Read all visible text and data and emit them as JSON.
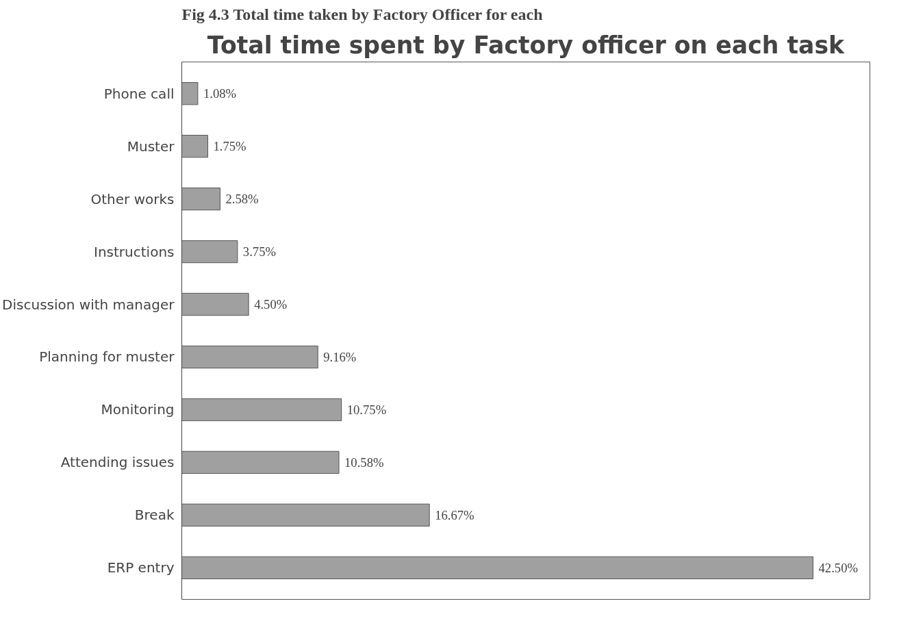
{
  "chart_data": {
    "type": "bar",
    "orientation": "horizontal",
    "title": "Total time spent by Factory officer on each task",
    "annotations": [
      "Fig 4.3 Total time taken by Factory Officer for each"
    ],
    "categories": [
      "Phone call",
      "Muster",
      "Other works",
      "Instructions",
      "Discussion with manager",
      "Planning for muster",
      "Monitoring",
      "Attending issues",
      "Break",
      "ERP entry"
    ],
    "values": [
      1.08,
      1.75,
      2.58,
      3.75,
      4.5,
      9.16,
      10.75,
      10.58,
      16.67,
      42.5
    ],
    "value_labels": [
      "1.08%",
      "1.75%",
      "2.58%",
      "3.75%",
      "4.50%",
      "9.16%",
      "10.75%",
      "10.58%",
      "16.67%",
      "42.50%"
    ],
    "color": "#a0a0a0",
    "grid": false
  }
}
